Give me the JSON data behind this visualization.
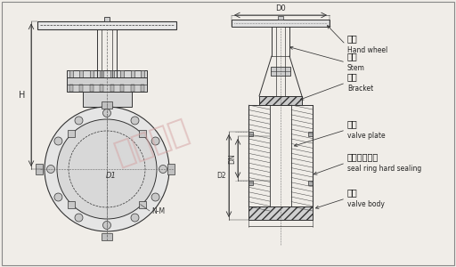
{
  "bg_color": "#f0ede8",
  "line_color": "#333333",
  "watermark_color": "#d4a0a0",
  "watermark_text": "川沪阀门",
  "labels": {
    "D0": "D0",
    "H": "H",
    "D1": "D1",
    "N_M": "N-M",
    "D2": "D2",
    "DN": "DN",
    "handwheel_cn": "手轮",
    "handwheel_en": "Hand wheel",
    "stem_cn": "阀杆",
    "stem_en": "Stem",
    "bracket_cn": "支架",
    "bracket_en": "Bracket",
    "valve_plate_cn": "闸板",
    "valve_plate_en": "valve plate",
    "seal_cn": "密封圈硬密封",
    "seal_en": "seal ring hard sealing",
    "body_cn": "阀体",
    "body_en": "valve body"
  }
}
